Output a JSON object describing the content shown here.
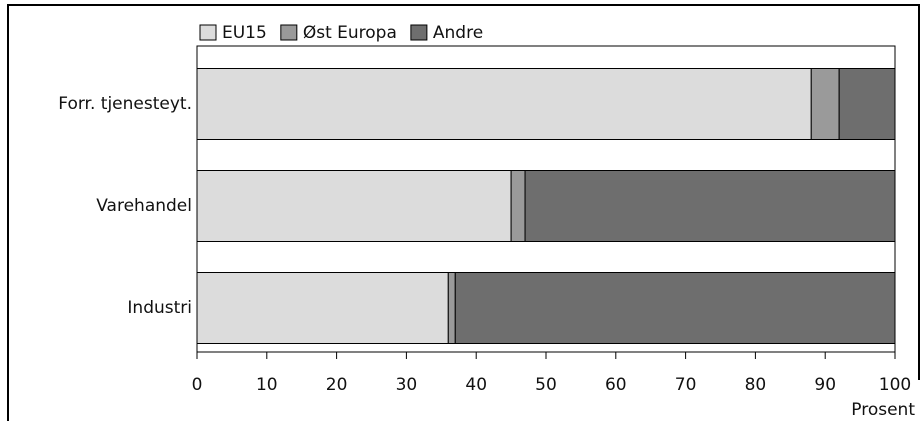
{
  "chart_data": {
    "type": "stacked-barh",
    "categories": [
      "Forr. tjenesteyt.",
      "Varehandel",
      "Industri"
    ],
    "series": [
      {
        "name": "EU15",
        "color": "#dcdcdc",
        "values": [
          88,
          45,
          36
        ]
      },
      {
        "name": "Øst Europa",
        "color": "#9a9a9a",
        "values": [
          4,
          2,
          1
        ]
      },
      {
        "name": "Andre",
        "color": "#6e6e6e",
        "values": [
          8,
          53,
          63
        ]
      }
    ],
    "xlim": [
      0,
      100
    ],
    "xticks": [
      0,
      10,
      20,
      30,
      40,
      50,
      60,
      70,
      80,
      90,
      100
    ],
    "xlabel": "Prosent"
  }
}
